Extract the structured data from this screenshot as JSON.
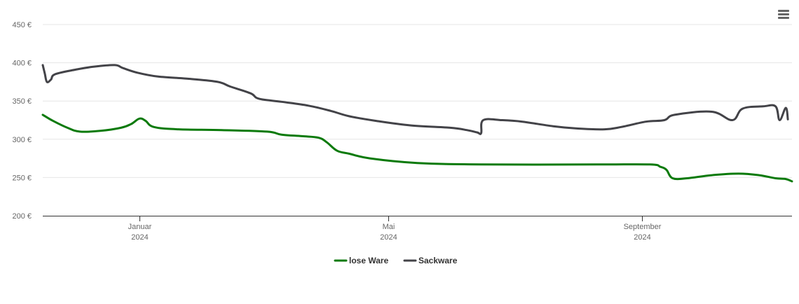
{
  "colors": {
    "lose_ware": "#0b7a0b",
    "sackware": "#434348",
    "grid": "#e6e6e6",
    "axis": "#333333"
  },
  "menu_icon": "hamburger-menu-icon",
  "chart_data": {
    "type": "line",
    "y_tick_labels": [
      "450 €",
      "400 €",
      "350 €",
      "300 €",
      "250 €",
      "200 €"
    ],
    "y_ticks": [
      450,
      400,
      350,
      300,
      250,
      200
    ],
    "ylim": [
      200,
      450
    ],
    "x_ticks": [
      {
        "month": "Januar",
        "year": "2024",
        "date": "2024-01-01"
      },
      {
        "month": "Mai",
        "year": "2024",
        "date": "2024-05-01"
      },
      {
        "month": "September",
        "year": "2024",
        "date": "2024-09-01"
      }
    ],
    "xlim": [
      "2023-11-15",
      "2024-11-13"
    ],
    "grid": true,
    "legend_position": "bottom-center",
    "series": [
      {
        "name": "lose Ware",
        "color": "#0b7a0b",
        "points": [
          [
            "2023-11-15",
            332
          ],
          [
            "2023-11-20",
            324
          ],
          [
            "2023-11-27",
            315
          ],
          [
            "2023-12-03",
            310
          ],
          [
            "2023-12-13",
            311
          ],
          [
            "2023-12-23",
            315
          ],
          [
            "2023-12-28",
            320
          ],
          [
            "2024-01-01",
            327
          ],
          [
            "2024-01-04",
            324
          ],
          [
            "2024-01-08",
            316
          ],
          [
            "2024-01-20",
            313
          ],
          [
            "2024-02-10",
            312
          ],
          [
            "2024-03-03",
            310
          ],
          [
            "2024-03-10",
            306
          ],
          [
            "2024-03-20",
            304
          ],
          [
            "2024-03-28",
            302
          ],
          [
            "2024-04-01",
            296
          ],
          [
            "2024-04-06",
            285
          ],
          [
            "2024-04-12",
            281
          ],
          [
            "2024-04-22",
            275
          ],
          [
            "2024-05-15",
            269
          ],
          [
            "2024-06-15",
            267
          ],
          [
            "2024-08-10",
            267
          ],
          [
            "2024-09-05",
            267
          ],
          [
            "2024-09-10",
            264
          ],
          [
            "2024-09-13",
            260
          ],
          [
            "2024-09-16",
            249
          ],
          [
            "2024-09-23",
            249
          ],
          [
            "2024-10-05",
            253
          ],
          [
            "2024-10-18",
            255
          ],
          [
            "2024-10-28",
            253
          ],
          [
            "2024-11-05",
            249
          ],
          [
            "2024-11-10",
            248
          ],
          [
            "2024-11-13",
            245
          ]
        ]
      },
      {
        "name": "Sackware",
        "color": "#434348",
        "points": [
          [
            "2023-11-15",
            397
          ],
          [
            "2023-11-16",
            386
          ],
          [
            "2023-11-17",
            375
          ],
          [
            "2023-11-19",
            378
          ],
          [
            "2023-11-21",
            385
          ],
          [
            "2023-12-01",
            391
          ],
          [
            "2023-12-10",
            395
          ],
          [
            "2023-12-20",
            397
          ],
          [
            "2023-12-24",
            393
          ],
          [
            "2023-12-31",
            387
          ],
          [
            "2024-01-10",
            382
          ],
          [
            "2024-01-25",
            379
          ],
          [
            "2024-02-08",
            375
          ],
          [
            "2024-02-14",
            369
          ],
          [
            "2024-02-24",
            360
          ],
          [
            "2024-02-28",
            353
          ],
          [
            "2024-03-10",
            349
          ],
          [
            "2024-03-23",
            344
          ],
          [
            "2024-04-03",
            337
          ],
          [
            "2024-04-12",
            330
          ],
          [
            "2024-04-25",
            324
          ],
          [
            "2024-05-12",
            318
          ],
          [
            "2024-05-31",
            315
          ],
          [
            "2024-06-08",
            312
          ],
          [
            "2024-06-13",
            309
          ],
          [
            "2024-06-15",
            308
          ],
          [
            "2024-06-16",
            325
          ],
          [
            "2024-06-25",
            325
          ],
          [
            "2024-07-05",
            323
          ],
          [
            "2024-07-20",
            317
          ],
          [
            "2024-08-01",
            314
          ],
          [
            "2024-08-14",
            313
          ],
          [
            "2024-08-22",
            316
          ],
          [
            "2024-09-03",
            323
          ],
          [
            "2024-09-12",
            325
          ],
          [
            "2024-10-15",
            325
          ],
          [
            "2024-11-07",
            325
          ],
          [
            "2024-11-11",
            326
          ],
          [
            "2024-09-17",
            332
          ],
          [
            "2024-10-05",
            336
          ],
          [
            "2024-10-20",
            340
          ],
          [
            "2024-10-30",
            343
          ],
          [
            "2024-11-05",
            343
          ],
          [
            "2024-11-10",
            341
          ]
        ]
      }
    ]
  },
  "legend": [
    {
      "label": "lose Ware",
      "color": "#0b7a0b"
    },
    {
      "label": "Sackware",
      "color": "#434348"
    }
  ]
}
